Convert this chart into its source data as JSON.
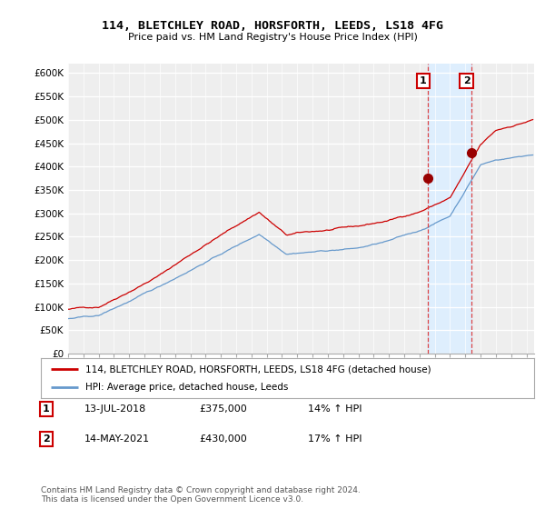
{
  "title": "114, BLETCHLEY ROAD, HORSFORTH, LEEDS, LS18 4FG",
  "subtitle": "Price paid vs. HM Land Registry's House Price Index (HPI)",
  "legend_line1": "114, BLETCHLEY ROAD, HORSFORTH, LEEDS, LS18 4FG (detached house)",
  "legend_line2": "HPI: Average price, detached house, Leeds",
  "annotation1_label": "1",
  "annotation1_date": "13-JUL-2018",
  "annotation1_price": "£375,000",
  "annotation1_hpi": "14% ↑ HPI",
  "annotation2_label": "2",
  "annotation2_date": "14-MAY-2021",
  "annotation2_price": "£430,000",
  "annotation2_hpi": "17% ↑ HPI",
  "copyright_text": "Contains HM Land Registry data © Crown copyright and database right 2024.\nThis data is licensed under the Open Government Licence v3.0.",
  "red_color": "#cc0000",
  "blue_color": "#6699cc",
  "shade_color": "#ddeeff",
  "ylim": [
    0,
    620000
  ],
  "ytick_vals": [
    0,
    50000,
    100000,
    150000,
    200000,
    250000,
    300000,
    350000,
    400000,
    450000,
    500000,
    550000,
    600000
  ],
  "ytick_labels": [
    "£0",
    "£50K",
    "£100K",
    "£150K",
    "£200K",
    "£250K",
    "£300K",
    "£350K",
    "£400K",
    "£450K",
    "£500K",
    "£550K",
    "£600K"
  ],
  "background_color": "#ffffff",
  "plot_bg_color": "#eeeeee",
  "purchase1_x": 2018.542,
  "purchase1_y": 375000,
  "purchase2_x": 2021.375,
  "purchase2_y": 430000,
  "xmin": 1995,
  "xmax": 2025.5
}
